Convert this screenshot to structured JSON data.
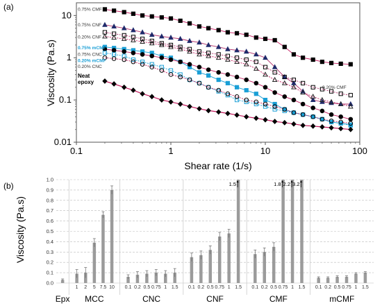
{
  "panels": {
    "a": "(a)",
    "b": "(b)"
  },
  "chart_data": [
    {
      "type": "scatter",
      "title": "",
      "xlabel": "Shear rate (1/s)",
      "ylabel": "Viscosity (Pa.s)",
      "xscale": "log",
      "yscale": "log",
      "xlim": [
        0.1,
        100
      ],
      "ylim": [
        0.01,
        20
      ],
      "x_ticks": [
        "0.1",
        "1",
        "10",
        "100"
      ],
      "y_ticks": [
        "0.01",
        "0.1",
        "1",
        "10"
      ],
      "series": [
        {
          "name": "0.75% CMF",
          "marker": "square",
          "filled": true,
          "color": "#000000",
          "x": [
            0.2,
            0.25,
            0.32,
            0.4,
            0.5,
            0.63,
            0.8,
            1,
            1.26,
            1.58,
            2,
            2.5,
            3.2,
            4,
            5,
            6.3,
            8,
            10,
            12.6,
            16,
            20,
            25,
            32,
            40,
            50,
            63,
            80
          ],
          "y": [
            14,
            13,
            12,
            11,
            10,
            9.5,
            9,
            8.5,
            7.5,
            6.5,
            5.5,
            5,
            4.5,
            4,
            3.8,
            3.5,
            3,
            2.8,
            2.6,
            1.8,
            1.2,
            1,
            0.9,
            0.8,
            0.75,
            0.72,
            0.7
          ]
        },
        {
          "name": "0.75% CNF",
          "marker": "triangle",
          "filled": true,
          "color": "#1f2a6b",
          "x": [
            0.2,
            0.25,
            0.32,
            0.4,
            0.5,
            0.63,
            0.8,
            1,
            1.26,
            1.58,
            2,
            2.5,
            3.2,
            4,
            5,
            6.3,
            8,
            10,
            12.6,
            16,
            20,
            25,
            32,
            40,
            50,
            63,
            80
          ],
          "y": [
            6,
            5.5,
            5,
            4.5,
            4,
            3.5,
            3.2,
            3,
            2.8,
            2.5,
            2.3,
            2,
            1.8,
            1.6,
            1.5,
            1.4,
            1.2,
            1,
            0.6,
            0.35,
            0.25,
            0.16,
            0.1,
            0.09,
            0.085,
            0.08,
            0.08
          ]
        },
        {
          "name": "0.20% CNF",
          "marker": "triangle",
          "filled": false,
          "color": "#222222",
          "x": [
            0.2,
            0.25,
            0.32,
            0.4,
            0.5,
            0.63,
            0.8,
            1,
            1.26,
            1.58,
            2,
            2.5,
            3.2,
            4,
            5,
            6.3,
            8,
            10,
            12.6,
            16,
            20,
            25,
            32,
            40,
            50,
            63,
            80
          ],
          "y": [
            3.2,
            3,
            2.8,
            2.6,
            2.4,
            2.2,
            2,
            1.8,
            1.6,
            1.4,
            1.2,
            1.1,
            1,
            0.9,
            0.8,
            0.7,
            0.55,
            0.4,
            0.3,
            0.25,
            0.2,
            0.15,
            0.12,
            0.1,
            0.09,
            0.08,
            0.07
          ]
        },
        {
          "name": "0.75% mCMF",
          "marker": "square",
          "filled": true,
          "color": "#1a9fd6",
          "x": [
            0.2,
            0.25,
            0.32,
            0.4,
            0.5,
            0.63,
            0.8,
            1,
            1.26,
            1.58,
            2,
            2.5,
            3.2,
            4,
            5,
            6.3,
            8,
            10,
            12.6,
            16,
            20,
            25,
            32,
            40,
            50,
            63,
            80
          ],
          "y": [
            1.8,
            1.7,
            1.6,
            1.5,
            1.4,
            1.3,
            1.1,
            1,
            0.8,
            0.6,
            0.45,
            0.38,
            0.3,
            0.25,
            0.2,
            0.17,
            0.14,
            0.1,
            0.08,
            0.06,
            0.05,
            0.045,
            0.04,
            0.035,
            0.03,
            0.028,
            0.026
          ]
        },
        {
          "name": "0.75% CNC",
          "marker": "circle",
          "filled": true,
          "color": "#000000",
          "x": [
            0.2,
            0.25,
            0.32,
            0.4,
            0.5,
            0.63,
            0.8,
            1,
            1.26,
            1.58,
            2,
            2.5,
            3.2,
            4,
            5,
            6.3,
            8,
            10,
            12.6,
            16,
            20,
            25,
            32,
            40,
            50,
            63,
            80
          ],
          "y": [
            1.6,
            1.5,
            1.4,
            1.3,
            1.2,
            1.1,
            1,
            0.9,
            0.8,
            0.7,
            0.6,
            0.52,
            0.45,
            0.4,
            0.35,
            0.3,
            0.25,
            0.2,
            0.15,
            0.12,
            0.1,
            0.08,
            0.065,
            0.055,
            0.045,
            0.04,
            0.035
          ]
        },
        {
          "name": "0.20% mCMF",
          "marker": "square",
          "filled": false,
          "color": "#1a9fd6",
          "x": [
            0.2,
            0.25,
            0.32,
            0.4,
            0.5,
            0.63,
            0.8,
            1,
            1.26,
            1.58,
            2,
            2.5,
            3.2,
            4,
            5,
            6.3,
            8,
            10,
            12.6,
            16,
            20,
            25,
            32,
            40,
            50,
            63,
            80
          ],
          "y": [
            1.3,
            1.2,
            1.1,
            0.9,
            0.8,
            0.7,
            0.6,
            0.5,
            0.4,
            0.3,
            0.25,
            0.2,
            0.16,
            0.13,
            0.1,
            0.09,
            0.08,
            0.07,
            0.06,
            0.055,
            0.05,
            0.045,
            0.04,
            0.035,
            0.03,
            0.028,
            0.025
          ]
        },
        {
          "name": "0.20% CNC",
          "marker": "circle",
          "filled": false,
          "color": "#000000",
          "x": [
            0.2,
            0.25,
            0.32,
            0.4,
            0.5,
            0.63,
            0.8,
            1,
            1.26,
            1.58,
            2,
            2.5,
            3.2,
            4,
            5,
            6.3,
            8,
            10,
            12.6,
            16,
            20,
            25,
            32,
            40,
            50,
            63,
            80
          ],
          "y": [
            1,
            0.95,
            0.9,
            0.8,
            0.7,
            0.6,
            0.5,
            0.4,
            0.35,
            0.3,
            0.25,
            0.2,
            0.17,
            0.14,
            0.12,
            0.1,
            0.09,
            0.08,
            0.07,
            0.06,
            0.05,
            0.045,
            0.04,
            0.035,
            0.032,
            0.03,
            0.028
          ]
        },
        {
          "name": "0.20% CMF",
          "marker": "square",
          "filled": false,
          "color": "#000000",
          "x": [
            0.2,
            0.25,
            0.32,
            0.4,
            0.5,
            0.63,
            0.8,
            1,
            1.26,
            1.58,
            2,
            2.5,
            3.2,
            4,
            5,
            6.3,
            8,
            10,
            12.6,
            16,
            20,
            25,
            32,
            40,
            50,
            63,
            80
          ],
          "y": [
            4,
            3.7,
            3.4,
            3.1,
            2.8,
            2.5,
            2.2,
            2,
            1.8,
            1.6,
            1.4,
            1.3,
            1.2,
            1.1,
            1,
            0.9,
            0.8,
            0.6,
            0.45,
            0.35,
            0.3,
            0.25,
            0.2,
            0.18,
            0.16,
            0.14,
            0.13
          ]
        },
        {
          "name": "Neat epoxy",
          "marker": "diamond",
          "filled": true,
          "color": "#000000",
          "x": [
            0.2,
            0.25,
            0.32,
            0.4,
            0.5,
            0.63,
            0.8,
            1,
            1.26,
            1.58,
            2,
            2.5,
            3.2,
            4,
            5,
            6.3,
            8,
            10,
            12.6,
            16,
            20,
            25,
            32,
            40,
            50,
            63,
            80
          ],
          "y": [
            0.28,
            0.24,
            0.2,
            0.17,
            0.14,
            0.12,
            0.1,
            0.09,
            0.08,
            0.07,
            0.062,
            0.056,
            0.052,
            0.048,
            0.044,
            0.04,
            0.037,
            0.034,
            0.031,
            0.029,
            0.027,
            0.025,
            0.024,
            0.023,
            0.022,
            0.021,
            0.02
          ]
        }
      ],
      "legend": [
        {
          "text": "0.75% CMF",
          "y": 14,
          "color": "#333333"
        },
        {
          "text": "0.75% CNF",
          "y": 6,
          "color": "#333333"
        },
        {
          "text": "0.20% CNF",
          "y": 3.1,
          "color": "#333333"
        },
        {
          "text": "0.75% mCMF",
          "y": 1.7,
          "color": "#1a9fd6"
        },
        {
          "text": "0.75% CNC",
          "y": 1.2,
          "color": "#333333"
        },
        {
          "text": "0.20% mCMF",
          "y": 0.85,
          "color": "#1a9fd6"
        },
        {
          "text": "0.20% CNC",
          "y": 0.62,
          "color": "#333333"
        },
        {
          "text": "Neat",
          "y": 0.36,
          "color": "#000000"
        },
        {
          "text": "epoxy",
          "y": 0.26,
          "color": "#000000"
        },
        {
          "text": "0.20% CMF",
          "y": 0.2,
          "color": "#333333"
        }
      ]
    },
    {
      "type": "bar",
      "title": "",
      "xlabel": "",
      "ylabel": "Viscosity (Pa.s)",
      "ylim": [
        0,
        1.0
      ],
      "y_ticks": [
        "0.0",
        "0.1",
        "0.2",
        "0.3",
        "0.4",
        "0.5",
        "0.6",
        "0.7",
        "0.8",
        "0.9",
        "1.0"
      ],
      "groups": [
        {
          "name": "Epx",
          "tick_labels": [
            ""
          ],
          "values": [
            0.03
          ],
          "errors": [
            0.01
          ]
        },
        {
          "name": "MCC",
          "tick_labels": [
            "1",
            "2",
            "5",
            "7.5",
            "10"
          ],
          "values": [
            0.09,
            0.1,
            0.39,
            0.66,
            0.9
          ],
          "errors": [
            0.04,
            0.05,
            0.04,
            0.03,
            0.04
          ]
        },
        {
          "name": "CNC",
          "tick_labels": [
            "0.1",
            "0.2",
            "0.5",
            "0.75",
            "1",
            "1.5"
          ],
          "values": [
            0.06,
            0.08,
            0.09,
            0.1,
            0.09,
            0.1
          ],
          "errors": [
            0.02,
            0.03,
            0.03,
            0.03,
            0.03,
            0.04
          ]
        },
        {
          "name": "CNF",
          "tick_labels": [
            "0.1",
            "0.2",
            "0.5",
            "0.75",
            "1",
            "1.5"
          ],
          "values": [
            0.25,
            0.27,
            0.32,
            0.45,
            0.48,
            1.0
          ],
          "errors": [
            0.04,
            0.04,
            0.04,
            0.04,
            0.04,
            0
          ],
          "off_scale_labels": [
            "",
            "",
            "",
            "",
            "",
            "1.5"
          ]
        },
        {
          "name": "CMF",
          "tick_labels": [
            "0.1",
            "0.2",
            "0.5",
            "0.75",
            "1",
            "1.5"
          ],
          "values": [
            0.28,
            0.3,
            0.35,
            1.0,
            1.0,
            1.0
          ],
          "errors": [
            0.04,
            0.04,
            0.04,
            0,
            0,
            0
          ],
          "off_scale_labels": [
            "",
            "",
            "",
            "1.8",
            "2.2",
            "3.2"
          ]
        },
        {
          "name": "mCMF",
          "tick_labels": [
            "0.1",
            "0.2",
            "0.5",
            "0.75",
            "1",
            "1.5"
          ],
          "values": [
            0.05,
            0.05,
            0.06,
            0.06,
            0.09,
            0.1
          ],
          "errors": [
            0.01,
            0.01,
            0.01,
            0.01,
            0.01,
            0.01
          ]
        }
      ]
    }
  ]
}
